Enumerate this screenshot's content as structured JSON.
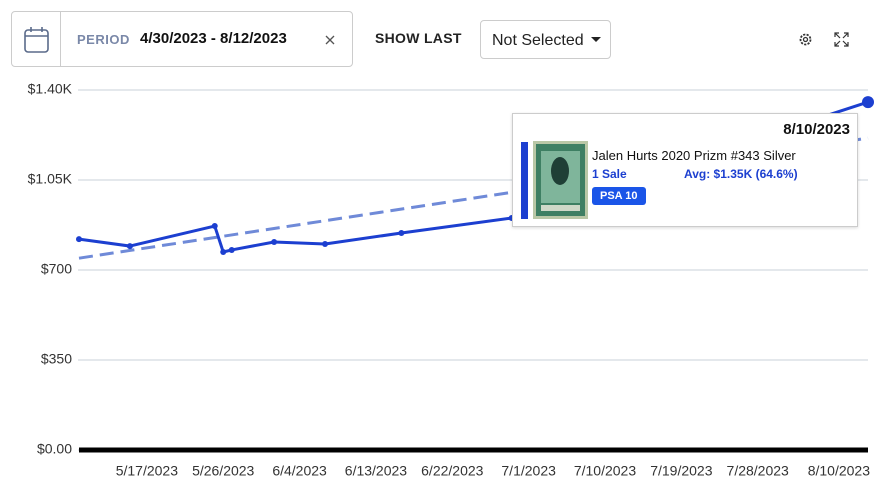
{
  "toolbar": {
    "period_label": "PERIOD",
    "period_value": "4/30/2023 - 8/12/2023",
    "show_last_label": "SHOW LAST",
    "dropdown_value": "Not Selected"
  },
  "chart_data": {
    "type": "line",
    "x": [
      "5/9/2023",
      "5/15/2023",
      "5/25/2023",
      "5/26/2023",
      "5/27/2023",
      "6/1/2023",
      "6/7/2023",
      "6/16/2023",
      "6/29/2023",
      "8/10/2023"
    ],
    "series": [
      {
        "color": "#1c3fd0",
        "values": [
          820,
          793,
          871,
          770,
          778,
          809,
          801,
          844,
          902,
          1353
        ]
      }
    ],
    "trend": {
      "x": [
        "5/9/2023",
        "8/10/2023"
      ],
      "values": [
        746,
        1213
      ],
      "color": "#6f8ad8"
    },
    "xlim": [
      "5/9/2023",
      "8/10/2023"
    ],
    "xticks": [
      "5/17/2023",
      "5/26/2023",
      "6/4/2023",
      "6/13/2023",
      "6/22/2023",
      "7/1/2023",
      "7/10/2023",
      "7/19/2023",
      "7/28/2023",
      "8/10/2023"
    ],
    "ylim": [
      0,
      1400
    ],
    "yticks": [
      {
        "value": 0,
        "label": "$0.00"
      },
      {
        "value": 350,
        "label": "$350"
      },
      {
        "value": 700,
        "label": "$700"
      },
      {
        "value": 1050,
        "label": "$1.05K"
      },
      {
        "value": 1400,
        "label": "$1.40K"
      }
    ],
    "grid": true
  },
  "tooltip": {
    "date": "8/10/2023",
    "title": "Jalen Hurts 2020 Prizm #343 Silver",
    "sales": "1 Sale",
    "average": "Avg: $1.35K (64.6%)",
    "grade": "PSA 10"
  }
}
